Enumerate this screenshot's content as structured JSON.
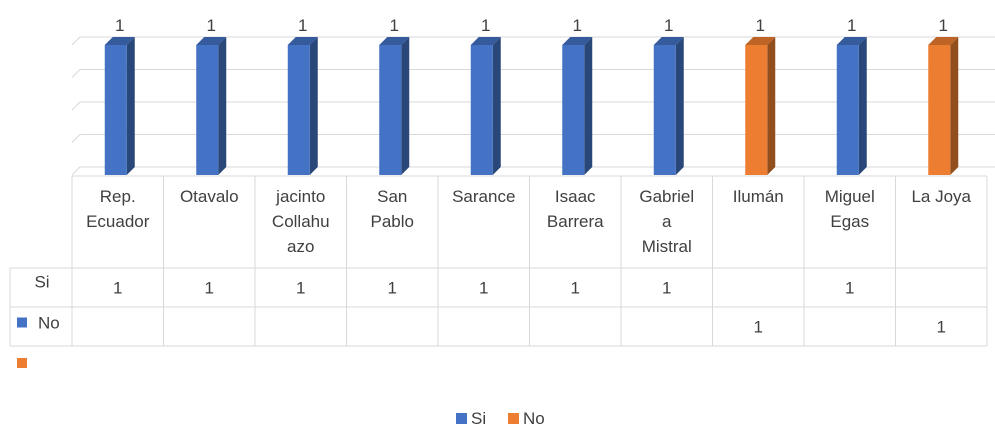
{
  "chart_data": {
    "type": "bar",
    "categories": [
      [
        "Rep.",
        "Ecuador"
      ],
      [
        "Otavalo"
      ],
      [
        "jacinto",
        "Collahu",
        "azo"
      ],
      [
        "San",
        "Pablo"
      ],
      [
        "Sarance"
      ],
      [
        "Isaac",
        "Barrera"
      ],
      [
        "Gabriel",
        "a",
        "Mistral"
      ],
      [
        "Ilumán"
      ],
      [
        "Miguel",
        "Egas"
      ],
      [
        "La Joya"
      ]
    ],
    "series": [
      {
        "name": "Si",
        "color": "#4472C4",
        "values": [
          1,
          1,
          1,
          1,
          1,
          1,
          1,
          null,
          1,
          null
        ]
      },
      {
        "name": "No",
        "color": "#ED7D31",
        "values": [
          null,
          null,
          null,
          null,
          null,
          null,
          null,
          1,
          null,
          1
        ]
      }
    ],
    "data_labels": true,
    "ylim": [
      0,
      1
    ],
    "grid": true,
    "data_table": true,
    "legend": {
      "position": "bottom",
      "entries": [
        "Si",
        "No"
      ]
    }
  }
}
